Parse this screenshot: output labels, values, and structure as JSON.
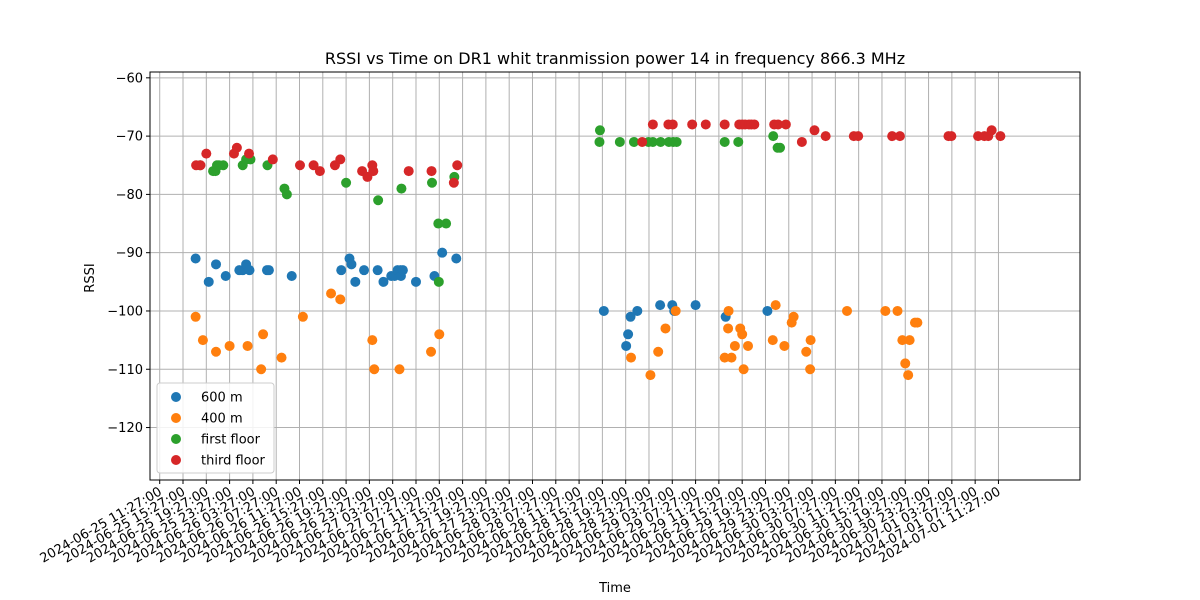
{
  "chart_data": {
    "type": "scatter",
    "title": "RSSI vs Time on DR1  whit tranmission power 14 in frequency 866.3 MHz",
    "xlabel": "Time",
    "ylabel": "RSSI",
    "ylim": [
      -129,
      -59
    ],
    "xlim": [
      "2024-06-25 09:47:00",
      "2024-07-02 01:27:00"
    ],
    "yticks": [
      -120,
      -110,
      -100,
      -90,
      -80,
      -70,
      -60
    ],
    "xtick_start": "2024-06-25 11:27:00",
    "xtick_step_hours": 4,
    "xtick_labels": [
      "2024-06-25 11:27:00",
      "2024-06-25 15:27:00",
      "2024-06-25 19:27:00",
      "2024-06-25 23:27:00",
      "2024-06-26 03:27:00",
      "2024-06-26 07:27:00",
      "2024-06-26 11:27:00",
      "2024-06-26 15:27:00",
      "2024-06-26 19:27:00",
      "2024-06-26 23:27:00",
      "2024-06-27 03:27:00",
      "2024-06-27 07:27:00",
      "2024-06-27 11:27:00",
      "2024-06-27 15:27:00",
      "2024-06-27 19:27:00",
      "2024-06-27 23:27:00",
      "2024-06-28 03:27:00",
      "2024-06-28 07:27:00",
      "2024-06-28 11:27:00",
      "2024-06-28 15:27:00",
      "2024-06-28 19:27:00",
      "2024-06-28 23:27:00",
      "2024-06-29 03:27:00",
      "2024-06-29 07:27:00",
      "2024-06-29 11:27:00",
      "2024-06-29 15:27:00",
      "2024-06-29 19:27:00",
      "2024-06-29 23:27:00",
      "2024-06-30 03:27:00",
      "2024-06-30 07:27:00",
      "2024-06-30 11:27:00",
      "2024-06-30 15:27:00",
      "2024-06-30 19:27:00",
      "2024-06-30 23:27:00",
      "2024-07-01 03:27:00",
      "2024-07-01 07:27:00",
      "2024-07-01 11:27:00"
    ],
    "grid": true,
    "legend_position": "lower-left",
    "series": [
      {
        "name": "600 m",
        "color": "#1f77b4",
        "points": [
          [
            "2024-06-25 17:37",
            -91
          ],
          [
            "2024-06-25 19:52",
            -95
          ],
          [
            "2024-06-25 21:07",
            -92
          ],
          [
            "2024-06-25 22:47",
            -94
          ],
          [
            "2024-06-26 01:07",
            -93
          ],
          [
            "2024-06-26 01:42",
            -93
          ],
          [
            "2024-06-26 02:17",
            -92
          ],
          [
            "2024-06-26 02:52",
            -93
          ],
          [
            "2024-06-26 05:52",
            -93
          ],
          [
            "2024-06-26 06:12",
            -93
          ],
          [
            "2024-06-26 10:07",
            -94
          ],
          [
            "2024-06-26 18:37",
            -93
          ],
          [
            "2024-06-26 20:02",
            -91
          ],
          [
            "2024-06-26 20:22",
            -92
          ],
          [
            "2024-06-26 21:02",
            -95
          ],
          [
            "2024-06-26 22:32",
            -93
          ],
          [
            "2024-06-27 00:52",
            -93
          ],
          [
            "2024-06-27 01:52",
            -95
          ],
          [
            "2024-06-27 03:12",
            -94
          ],
          [
            "2024-06-27 03:47",
            -94
          ],
          [
            "2024-06-27 04:17",
            -93
          ],
          [
            "2024-06-27 04:47",
            -93
          ],
          [
            "2024-06-27 04:52",
            -94
          ],
          [
            "2024-06-27 05:12",
            -93
          ],
          [
            "2024-06-27 07:27",
            -95
          ],
          [
            "2024-06-27 10:37",
            -94
          ],
          [
            "2024-06-27 11:57",
            -90
          ],
          [
            "2024-06-27 14:22",
            -91
          ],
          [
            "2024-06-28 15:42",
            -100
          ],
          [
            "2024-06-28 19:32",
            -106
          ],
          [
            "2024-06-28 19:52",
            -104
          ],
          [
            "2024-06-28 20:17",
            -101
          ],
          [
            "2024-06-28 21:27",
            -100
          ],
          [
            "2024-06-29 01:22",
            -99
          ],
          [
            "2024-06-29 03:27",
            -99
          ],
          [
            "2024-06-29 03:47",
            -100
          ],
          [
            "2024-06-29 07:27",
            -99
          ],
          [
            "2024-06-29 12:37",
            -101
          ],
          [
            "2024-06-29 19:47",
            -100
          ]
        ]
      },
      {
        "name": "400 m",
        "color": "#ff7f0e",
        "points": [
          [
            "2024-06-25 17:37",
            -101
          ],
          [
            "2024-06-25 18:52",
            -105
          ],
          [
            "2024-06-25 21:07",
            -107
          ],
          [
            "2024-06-25 23:27",
            -106
          ],
          [
            "2024-06-26 02:32",
            -106
          ],
          [
            "2024-06-26 04:52",
            -110
          ],
          [
            "2024-06-26 05:12",
            -104
          ],
          [
            "2024-06-26 08:22",
            -108
          ],
          [
            "2024-06-26 12:02",
            -101
          ],
          [
            "2024-06-26 16:52",
            -97
          ],
          [
            "2024-06-26 18:27",
            -98
          ],
          [
            "2024-06-26 23:57",
            -105
          ],
          [
            "2024-06-27 00:17",
            -110
          ],
          [
            "2024-06-27 04:37",
            -110
          ],
          [
            "2024-06-27 10:02",
            -107
          ],
          [
            "2024-06-27 11:27",
            -104
          ],
          [
            "2024-06-28 20:22",
            -108
          ],
          [
            "2024-06-28 23:42",
            -111
          ],
          [
            "2024-06-29 01:02",
            -107
          ],
          [
            "2024-06-29 02:17",
            -103
          ],
          [
            "2024-06-29 04:02",
            -100
          ],
          [
            "2024-06-29 12:27",
            -108
          ],
          [
            "2024-06-29 13:37",
            -108
          ],
          [
            "2024-06-29 14:12",
            -106
          ],
          [
            "2024-06-29 15:27",
            -104
          ],
          [
            "2024-06-29 13:02",
            -103
          ],
          [
            "2024-06-29 13:07",
            -100
          ],
          [
            "2024-06-29 15:07",
            -103
          ],
          [
            "2024-06-29 15:42",
            -110
          ],
          [
            "2024-06-29 16:27",
            -106
          ],
          [
            "2024-06-29 20:42",
            -105
          ],
          [
            "2024-06-29 21:12",
            -99
          ],
          [
            "2024-06-29 22:42",
            -106
          ],
          [
            "2024-06-29 23:57",
            -102
          ],
          [
            "2024-06-30 00:17",
            -101
          ],
          [
            "2024-06-30 02:27",
            -107
          ],
          [
            "2024-06-30 03:07",
            -110
          ],
          [
            "2024-06-30 03:12",
            -105
          ],
          [
            "2024-06-30 09:27",
            -100
          ],
          [
            "2024-06-30 16:02",
            -100
          ],
          [
            "2024-06-30 18:07",
            -100
          ],
          [
            "2024-06-30 18:57",
            -105
          ],
          [
            "2024-06-30 19:27",
            -109
          ],
          [
            "2024-06-30 19:57",
            -111
          ],
          [
            "2024-06-30 20:12",
            -105
          ],
          [
            "2024-06-30 21:07",
            -102
          ],
          [
            "2024-06-30 21:32",
            -102
          ]
        ]
      },
      {
        "name": "first floor",
        "color": "#2ca02c",
        "points": [
          [
            "2024-06-25 18:22",
            -75
          ],
          [
            "2024-06-25 20:37",
            -76
          ],
          [
            "2024-06-25 21:02",
            -76
          ],
          [
            "2024-06-25 21:17",
            -75
          ],
          [
            "2024-06-25 21:37",
            -75
          ],
          [
            "2024-06-25 22:22",
            -75
          ],
          [
            "2024-06-26 01:42",
            -75
          ],
          [
            "2024-06-26 02:17",
            -74
          ],
          [
            "2024-06-26 03:02",
            -74
          ],
          [
            "2024-06-26 05:57",
            -75
          ],
          [
            "2024-06-26 08:52",
            -79
          ],
          [
            "2024-06-26 09:17",
            -80
          ],
          [
            "2024-06-26 19:27",
            -78
          ],
          [
            "2024-06-27 00:57",
            -81
          ],
          [
            "2024-06-27 04:57",
            -79
          ],
          [
            "2024-06-27 10:12",
            -78
          ],
          [
            "2024-06-27 11:17",
            -85
          ],
          [
            "2024-06-27 12:37",
            -85
          ],
          [
            "2024-06-27 11:22",
            -95
          ],
          [
            "2024-06-27 14:02",
            -77
          ],
          [
            "2024-06-28 14:57",
            -71
          ],
          [
            "2024-06-28 15:02",
            -69
          ],
          [
            "2024-06-28 18:27",
            -71
          ],
          [
            "2024-06-28 20:52",
            -71
          ],
          [
            "2024-06-28 23:22",
            -71
          ],
          [
            "2024-06-29 00:07",
            -71
          ],
          [
            "2024-06-29 01:27",
            -71
          ],
          [
            "2024-06-29 02:52",
            -71
          ],
          [
            "2024-06-29 03:37",
            -71
          ],
          [
            "2024-06-29 04:12",
            -71
          ],
          [
            "2024-06-29 12:27",
            -71
          ],
          [
            "2024-06-29 14:47",
            -71
          ],
          [
            "2024-06-29 20:47",
            -70
          ],
          [
            "2024-06-29 21:32",
            -72
          ],
          [
            "2024-06-29 21:57",
            -72
          ]
        ]
      },
      {
        "name": "third floor",
        "color": "#d62728",
        "points": [
          [
            "2024-06-25 17:42",
            -75
          ],
          [
            "2024-06-25 18:27",
            -75
          ],
          [
            "2024-06-25 19:27",
            -73
          ],
          [
            "2024-06-26 00:12",
            -73
          ],
          [
            "2024-06-26 00:42",
            -72
          ],
          [
            "2024-06-26 02:47",
            -73
          ],
          [
            "2024-06-26 06:52",
            -74
          ],
          [
            "2024-06-26 11:32",
            -75
          ],
          [
            "2024-06-26 13:52",
            -75
          ],
          [
            "2024-06-26 14:57",
            -76
          ],
          [
            "2024-06-26 17:32",
            -75
          ],
          [
            "2024-06-26 18:27",
            -74
          ],
          [
            "2024-06-26 22:12",
            -76
          ],
          [
            "2024-06-26 23:07",
            -77
          ],
          [
            "2024-06-26 23:57",
            -75
          ],
          [
            "2024-06-27 00:07",
            -76
          ],
          [
            "2024-06-27 06:12",
            -76
          ],
          [
            "2024-06-27 10:07",
            -76
          ],
          [
            "2024-06-27 13:57",
            -78
          ],
          [
            "2024-06-27 14:32",
            -75
          ],
          [
            "2024-06-28 22:17",
            -71
          ],
          [
            "2024-06-29 00:07",
            -68
          ],
          [
            "2024-06-29 02:47",
            -68
          ],
          [
            "2024-06-29 03:32",
            -68
          ],
          [
            "2024-06-29 06:52",
            -68
          ],
          [
            "2024-06-29 09:12",
            -68
          ],
          [
            "2024-06-29 12:27",
            -68
          ],
          [
            "2024-06-29 14:57",
            -68
          ],
          [
            "2024-06-29 15:27",
            -68
          ],
          [
            "2024-06-29 15:57",
            -68
          ],
          [
            "2024-06-29 16:37",
            -68
          ],
          [
            "2024-06-29 17:02",
            -68
          ],
          [
            "2024-06-29 17:32",
            -68
          ],
          [
            "2024-06-29 20:57",
            -68
          ],
          [
            "2024-06-29 21:37",
            -68
          ],
          [
            "2024-06-29 22:57",
            -68
          ],
          [
            "2024-06-30 01:42",
            -71
          ],
          [
            "2024-06-30 03:52",
            -69
          ],
          [
            "2024-06-30 05:47",
            -70
          ],
          [
            "2024-06-30 10:37",
            -70
          ],
          [
            "2024-06-30 11:22",
            -70
          ],
          [
            "2024-06-30 17:12",
            -70
          ],
          [
            "2024-06-30 18:32",
            -70
          ],
          [
            "2024-07-01 02:52",
            -70
          ],
          [
            "2024-07-01 03:22",
            -70
          ],
          [
            "2024-07-01 07:57",
            -70
          ],
          [
            "2024-07-01 09:02",
            -70
          ],
          [
            "2024-07-01 09:42",
            -70
          ],
          [
            "2024-07-01 10:17",
            -69
          ],
          [
            "2024-07-01 11:47",
            -70
          ]
        ]
      }
    ]
  }
}
